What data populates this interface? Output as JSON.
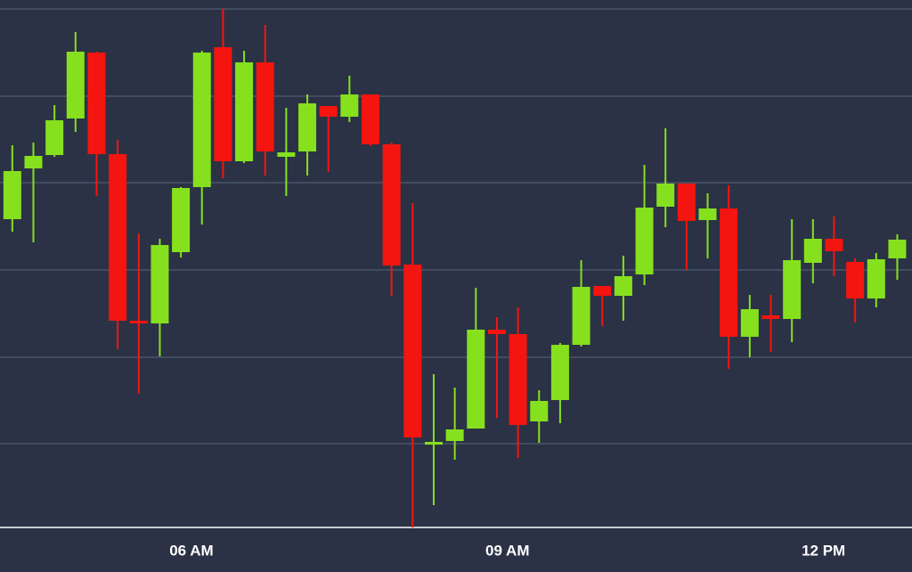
{
  "chart_data": {
    "type": "candlestick",
    "x": [
      4.3,
      4.5,
      4.7,
      4.9,
      5.1,
      5.3,
      5.5,
      5.7,
      5.9,
      6.1,
      6.3,
      6.5,
      6.7,
      6.9,
      7.1,
      7.3,
      7.5,
      7.7,
      7.9,
      8.1,
      8.3,
      8.5,
      8.7,
      8.9,
      9.1,
      9.3,
      9.5,
      9.7,
      9.9,
      10.1,
      10.3,
      10.5,
      10.7,
      10.9,
      11.1,
      11.3,
      11.5,
      11.7,
      11.9,
      12.1,
      12.3,
      12.5,
      12.7
    ],
    "open": [
      346,
      403,
      418,
      459,
      533,
      419,
      232,
      229,
      309,
      382,
      539,
      411,
      522,
      416,
      422,
      473,
      461,
      486,
      430,
      295,
      93,
      97,
      111,
      222,
      217,
      119,
      143,
      205,
      271,
      260,
      284,
      360,
      386,
      345,
      358,
      214,
      238,
      234,
      297,
      324,
      298,
      257,
      302
    ],
    "close": [
      400,
      417,
      457,
      534,
      419,
      232,
      230,
      317,
      381,
      533,
      411,
      522,
      422,
      421,
      476,
      461,
      486,
      430,
      294,
      101,
      96,
      110,
      222,
      217,
      115,
      142,
      205,
      270,
      260,
      282,
      359,
      386,
      344,
      358,
      214,
      245,
      234,
      300,
      324,
      310,
      257,
      301,
      323
    ],
    "high": [
      429,
      432,
      474,
      556,
      534,
      435,
      330,
      324,
      382,
      535,
      582,
      535,
      564,
      471,
      486,
      473,
      507,
      486,
      432,
      364,
      172,
      157,
      269,
      236,
      247,
      154,
      207,
      300,
      271,
      305,
      407,
      448,
      386,
      375,
      384,
      261,
      261,
      346,
      346,
      349,
      302,
      308,
      329
    ],
    "low": [
      332,
      320,
      416,
      444,
      372,
      200,
      150,
      192,
      303,
      340,
      392,
      409,
      395,
      372,
      395,
      399,
      455,
      428,
      260,
      0,
      25,
      76,
      111,
      123,
      78,
      95,
      117,
      203,
      226,
      232,
      272,
      337,
      289,
      302,
      178,
      191,
      197,
      208,
      274,
      282,
      230,
      247,
      278
    ],
    "up_color": "#86e01e",
    "down_color": "#f41410",
    "xlim": [
      4.183,
      12.84
    ],
    "xticks": [
      {
        "value": 6,
        "label": "06 AM"
      },
      {
        "value": 9,
        "label": "09 AM"
      },
      {
        "value": 12,
        "label": "12 PM"
      }
    ],
    "ylim": [
      0,
      592
    ],
    "yticks": [
      94,
      191,
      289,
      387,
      484,
      582
    ],
    "grid": true
  }
}
